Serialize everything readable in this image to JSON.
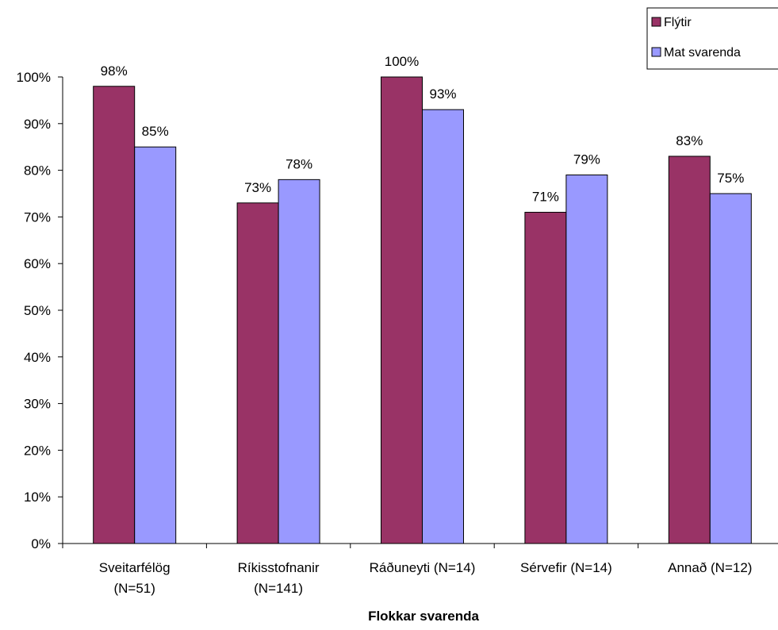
{
  "chart_data": {
    "type": "bar",
    "categories": [
      [
        "Sveitarfélög",
        "(N=51)"
      ],
      [
        "Ríkisstofnanir",
        "(N=141)"
      ],
      [
        "Ráðuneyti (N=14)"
      ],
      [
        "Sérvefir (N=14)"
      ],
      [
        "Annað (N=12)"
      ]
    ],
    "series": [
      {
        "name": "Flýtir",
        "values": [
          98,
          73,
          100,
          71,
          83
        ],
        "color": "#993366"
      },
      {
        "name": "Mat svarenda",
        "values": [
          85,
          78,
          93,
          79,
          75
        ],
        "color": "#9999FF"
      }
    ],
    "value_labels": [
      [
        "98%",
        "73%",
        "100%",
        "71%",
        "83%"
      ],
      [
        "85%",
        "78%",
        "93%",
        "79%",
        "75%"
      ]
    ],
    "yticks": [
      "0%",
      "10%",
      "20%",
      "30%",
      "40%",
      "50%",
      "60%",
      "70%",
      "80%",
      "90%",
      "100%"
    ],
    "ylim": [
      0,
      100
    ],
    "xlabel": "Flokkar svarenda",
    "ylabel": "",
    "title": "",
    "grid": false,
    "legend_position": "top-right"
  }
}
